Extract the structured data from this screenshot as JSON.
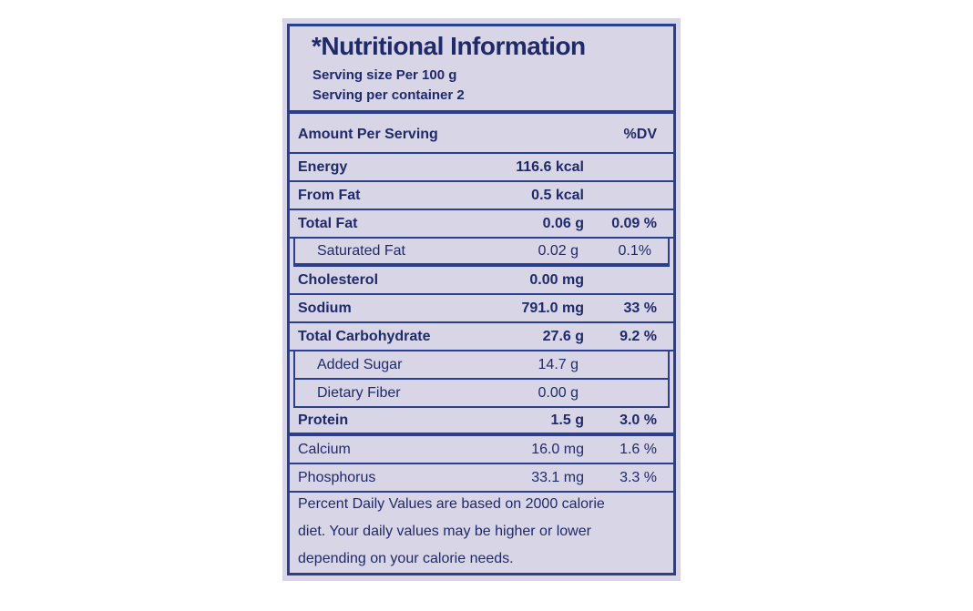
{
  "header": {
    "title": "*Nutritional Information",
    "lines": [
      "Serving size Per 100 g",
      "Serving per container 2"
    ]
  },
  "table": {
    "header": [
      "Amount Per Serving",
      "%DV"
    ],
    "rows": [
      {
        "name": "Energy",
        "amount": "116.6 kcal"
      },
      {
        "name": "From Fat",
        "amount": "0.5 kcal"
      },
      {
        "name": "Total Fat",
        "amount": "0.06 g",
        "dv": "0.09 %"
      },
      {
        "name": "Saturated Fat",
        "amount": "0.02 g",
        "dv": "0.1%"
      },
      {
        "name": "Cholesterol",
        "amount": "0.00 mg"
      },
      {
        "name": "Sodium",
        "amount": "791.0 mg",
        "dv": "33 %"
      },
      {
        "name": "Total Carbohydrate",
        "amount": "27.6 g",
        "dv": "9.2 %"
      },
      {
        "name": "Added Sugar",
        "amount": "14.7 g"
      },
      {
        "name": "Dietary Fiber",
        "amount": "0.00 g"
      },
      {
        "name": "Protein",
        "amount": "1.5 g",
        "dv": "3.0 %"
      },
      {
        "name": "Calcium",
        "amount": "16.0 mg",
        "dv": "1.6 %"
      },
      {
        "name": "Phosphorus",
        "amount": "33.1 mg",
        "dv": "3.3 %"
      }
    ]
  },
  "footer": {
    "lines": [
      "Percent Daily Values are based on 2000 calorie",
      "diet. Your daily values may be higher or lower",
      "depending on your calorie needs."
    ]
  }
}
